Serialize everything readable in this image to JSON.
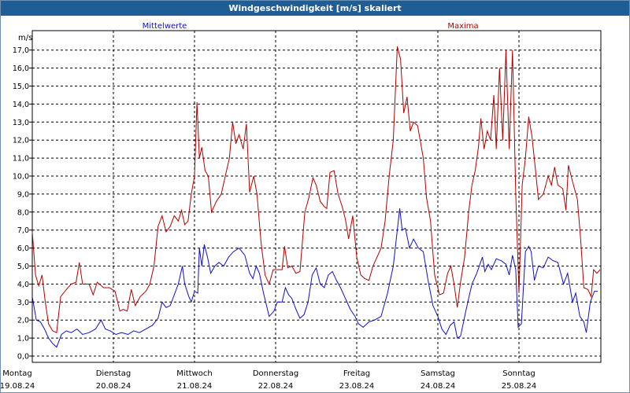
{
  "window": {
    "title": "Windgeschwindigkeit [m/s] skaliert"
  },
  "colors": {
    "mean": "#1010c8",
    "max": "#b40000",
    "titlebar": "#1f5d96"
  },
  "chart_data": {
    "type": "line",
    "title": "Windgeschwindigkeit [m/s] skaliert",
    "ylabel": "m/s",
    "ylim": [
      0,
      18
    ],
    "yticks": [
      "0,0",
      "1,0",
      "2,0",
      "3,0",
      "4,0",
      "5,0",
      "6,0",
      "7,0",
      "8,0",
      "9,0",
      "10,0",
      "11,0",
      "12,0",
      "13,0",
      "14,0",
      "15,0",
      "16,0",
      "17,0"
    ],
    "x_range_days": [
      0,
      7
    ],
    "days": [
      {
        "name": "Montag",
        "date": "19.08.24"
      },
      {
        "name": "Dienstag",
        "date": "20.08.24"
      },
      {
        "name": "Mittwoch",
        "date": "21.08.24"
      },
      {
        "name": "Donnerstag",
        "date": "22.08.24"
      },
      {
        "name": "Freitag",
        "date": "23.08.24"
      },
      {
        "name": "Samstag",
        "date": "24.08.24"
      },
      {
        "name": "Sonntag",
        "date": "25.08.24"
      }
    ],
    "grid": true,
    "series": [
      {
        "name": "Mittelwerte",
        "color": "#1010c8",
        "points": [
          [
            0.0,
            3.3
          ],
          [
            0.05,
            2.0
          ],
          [
            0.1,
            1.9
          ],
          [
            0.15,
            1.5
          ],
          [
            0.2,
            1.0
          ],
          [
            0.25,
            0.7
          ],
          [
            0.3,
            0.5
          ],
          [
            0.36,
            1.2
          ],
          [
            0.42,
            1.4
          ],
          [
            0.48,
            1.3
          ],
          [
            0.55,
            1.5
          ],
          [
            0.62,
            1.2
          ],
          [
            0.7,
            1.3
          ],
          [
            0.78,
            1.5
          ],
          [
            0.85,
            2.0
          ],
          [
            0.9,
            1.5
          ],
          [
            0.96,
            1.4
          ],
          [
            1.03,
            1.2
          ],
          [
            1.1,
            1.3
          ],
          [
            1.18,
            1.2
          ],
          [
            1.25,
            1.4
          ],
          [
            1.32,
            1.3
          ],
          [
            1.4,
            1.5
          ],
          [
            1.48,
            1.7
          ],
          [
            1.55,
            2.1
          ],
          [
            1.6,
            3.0
          ],
          [
            1.65,
            2.7
          ],
          [
            1.7,
            2.8
          ],
          [
            1.75,
            3.4
          ],
          [
            1.8,
            4.0
          ],
          [
            1.85,
            5.0
          ],
          [
            1.88,
            4.0
          ],
          [
            1.93,
            3.3
          ],
          [
            1.96,
            3.0
          ],
          [
            2.0,
            3.6
          ],
          [
            2.04,
            3.5
          ],
          [
            2.06,
            6.0
          ],
          [
            2.09,
            5.0
          ],
          [
            2.12,
            6.2
          ],
          [
            2.16,
            5.5
          ],
          [
            2.2,
            4.6
          ],
          [
            2.25,
            5.0
          ],
          [
            2.3,
            5.2
          ],
          [
            2.36,
            5.0
          ],
          [
            2.42,
            5.5
          ],
          [
            2.48,
            5.8
          ],
          [
            2.55,
            6.0
          ],
          [
            2.62,
            5.6
          ],
          [
            2.68,
            4.6
          ],
          [
            2.72,
            4.3
          ],
          [
            2.76,
            5.0
          ],
          [
            2.8,
            4.6
          ],
          [
            2.85,
            3.5
          ],
          [
            2.92,
            2.2
          ],
          [
            2.98,
            2.5
          ],
          [
            3.02,
            3.0
          ],
          [
            3.08,
            3.0
          ],
          [
            3.12,
            3.8
          ],
          [
            3.16,
            3.4
          ],
          [
            3.2,
            3.2
          ],
          [
            3.25,
            2.6
          ],
          [
            3.3,
            2.1
          ],
          [
            3.35,
            2.3
          ],
          [
            3.4,
            3.0
          ],
          [
            3.45,
            4.5
          ],
          [
            3.5,
            4.9
          ],
          [
            3.55,
            4.0
          ],
          [
            3.6,
            3.8
          ],
          [
            3.65,
            4.5
          ],
          [
            3.7,
            4.7
          ],
          [
            3.75,
            4.2
          ],
          [
            3.8,
            3.8
          ],
          [
            3.85,
            3.3
          ],
          [
            3.92,
            2.6
          ],
          [
            3.98,
            2.2
          ],
          [
            4.02,
            1.8
          ],
          [
            4.08,
            1.6
          ],
          [
            4.15,
            1.9
          ],
          [
            4.22,
            2.0
          ],
          [
            4.3,
            2.2
          ],
          [
            4.38,
            3.5
          ],
          [
            4.45,
            5.0
          ],
          [
            4.5,
            7.0
          ],
          [
            4.53,
            8.2
          ],
          [
            4.56,
            7.0
          ],
          [
            4.6,
            7.1
          ],
          [
            4.65,
            6.0
          ],
          [
            4.7,
            6.5
          ],
          [
            4.76,
            6.0
          ],
          [
            4.82,
            5.8
          ],
          [
            4.88,
            4.2
          ],
          [
            4.94,
            2.8
          ],
          [
            5.0,
            2.2
          ],
          [
            5.05,
            1.5
          ],
          [
            5.1,
            1.2
          ],
          [
            5.15,
            1.7
          ],
          [
            5.2,
            1.9
          ],
          [
            5.24,
            1.0
          ],
          [
            5.28,
            1.1
          ],
          [
            5.35,
            2.6
          ],
          [
            5.42,
            4.0
          ],
          [
            5.48,
            4.6
          ],
          [
            5.55,
            5.5
          ],
          [
            5.58,
            4.7
          ],
          [
            5.62,
            5.1
          ],
          [
            5.66,
            4.8
          ],
          [
            5.72,
            5.4
          ],
          [
            5.78,
            5.3
          ],
          [
            5.84,
            5.1
          ],
          [
            5.88,
            4.5
          ],
          [
            5.92,
            5.6
          ],
          [
            5.96,
            4.8
          ],
          [
            5.99,
            1.6
          ],
          [
            6.03,
            1.8
          ],
          [
            6.08,
            5.8
          ],
          [
            6.12,
            6.1
          ],
          [
            6.15,
            5.8
          ],
          [
            6.19,
            4.2
          ],
          [
            6.24,
            5.0
          ],
          [
            6.3,
            4.9
          ],
          [
            6.36,
            5.5
          ],
          [
            6.42,
            5.3
          ],
          [
            6.48,
            5.2
          ],
          [
            6.55,
            4.0
          ],
          [
            6.6,
            4.6
          ],
          [
            6.66,
            3.0
          ],
          [
            6.7,
            3.5
          ],
          [
            6.75,
            2.2
          ],
          [
            6.8,
            1.9
          ],
          [
            6.83,
            1.3
          ],
          [
            6.88,
            3.0
          ],
          [
            6.93,
            3.6
          ],
          [
            6.97,
            3.6
          ]
        ]
      },
      {
        "name": "Maxima",
        "color": "#b40000",
        "points": [
          [
            0.0,
            6.9
          ],
          [
            0.04,
            4.5
          ],
          [
            0.08,
            3.9
          ],
          [
            0.12,
            4.5
          ],
          [
            0.16,
            3.0
          ],
          [
            0.2,
            1.8
          ],
          [
            0.25,
            1.4
          ],
          [
            0.3,
            1.3
          ],
          [
            0.35,
            3.3
          ],
          [
            0.42,
            3.7
          ],
          [
            0.48,
            4.0
          ],
          [
            0.54,
            4.1
          ],
          [
            0.58,
            5.2
          ],
          [
            0.62,
            4.0
          ],
          [
            0.7,
            4.0
          ],
          [
            0.75,
            3.4
          ],
          [
            0.8,
            4.1
          ],
          [
            0.88,
            3.8
          ],
          [
            0.95,
            3.8
          ],
          [
            1.02,
            3.6
          ],
          [
            1.08,
            2.5
          ],
          [
            1.12,
            2.6
          ],
          [
            1.17,
            2.5
          ],
          [
            1.22,
            3.7
          ],
          [
            1.27,
            2.8
          ],
          [
            1.33,
            3.3
          ],
          [
            1.4,
            3.6
          ],
          [
            1.45,
            4.0
          ],
          [
            1.5,
            5.0
          ],
          [
            1.55,
            7.2
          ],
          [
            1.6,
            7.8
          ],
          [
            1.65,
            6.9
          ],
          [
            1.7,
            7.2
          ],
          [
            1.75,
            7.8
          ],
          [
            1.8,
            7.5
          ],
          [
            1.84,
            8.1
          ],
          [
            1.88,
            7.3
          ],
          [
            1.92,
            7.5
          ],
          [
            1.96,
            9.0
          ],
          [
            2.0,
            10.0
          ],
          [
            2.03,
            14.1
          ],
          [
            2.06,
            11.0
          ],
          [
            2.09,
            11.6
          ],
          [
            2.13,
            10.3
          ],
          [
            2.17,
            10.0
          ],
          [
            2.21,
            8.0
          ],
          [
            2.27,
            8.6
          ],
          [
            2.33,
            9.0
          ],
          [
            2.38,
            10.0
          ],
          [
            2.43,
            11.0
          ],
          [
            2.47,
            13.0
          ],
          [
            2.51,
            11.8
          ],
          [
            2.55,
            12.3
          ],
          [
            2.6,
            11.5
          ],
          [
            2.64,
            12.9
          ],
          [
            2.68,
            9.1
          ],
          [
            2.73,
            10.0
          ],
          [
            2.77,
            9.0
          ],
          [
            2.82,
            6.3
          ],
          [
            2.87,
            4.5
          ],
          [
            2.92,
            4.0
          ],
          [
            2.97,
            4.8
          ],
          [
            3.03,
            4.8
          ],
          [
            3.08,
            4.8
          ],
          [
            3.11,
            6.1
          ],
          [
            3.15,
            4.9
          ],
          [
            3.2,
            5.0
          ],
          [
            3.25,
            4.6
          ],
          [
            3.3,
            4.7
          ],
          [
            3.36,
            8.0
          ],
          [
            3.41,
            8.8
          ],
          [
            3.46,
            9.9
          ],
          [
            3.5,
            9.5
          ],
          [
            3.55,
            8.6
          ],
          [
            3.6,
            8.3
          ],
          [
            3.63,
            8.2
          ],
          [
            3.67,
            10.2
          ],
          [
            3.72,
            10.3
          ],
          [
            3.77,
            9.0
          ],
          [
            3.82,
            8.3
          ],
          [
            3.86,
            7.6
          ],
          [
            3.9,
            6.5
          ],
          [
            3.95,
            7.8
          ],
          [
            4.0,
            5.5
          ],
          [
            4.05,
            4.5
          ],
          [
            4.1,
            4.3
          ],
          [
            4.15,
            4.2
          ],
          [
            4.2,
            5.0
          ],
          [
            4.25,
            5.5
          ],
          [
            4.3,
            6.0
          ],
          [
            4.35,
            7.5
          ],
          [
            4.4,
            10.0
          ],
          [
            4.45,
            12.0
          ],
          [
            4.5,
            17.2
          ],
          [
            4.54,
            16.5
          ],
          [
            4.58,
            13.5
          ],
          [
            4.62,
            14.4
          ],
          [
            4.66,
            12.5
          ],
          [
            4.7,
            13.0
          ],
          [
            4.75,
            12.8
          ],
          [
            4.82,
            11.0
          ],
          [
            4.86,
            8.8
          ],
          [
            4.91,
            7.5
          ],
          [
            4.96,
            4.5
          ],
          [
            5.02,
            3.4
          ],
          [
            5.07,
            3.5
          ],
          [
            5.12,
            4.6
          ],
          [
            5.16,
            5.0
          ],
          [
            5.2,
            4.0
          ],
          [
            5.24,
            2.7
          ],
          [
            5.28,
            4.1
          ],
          [
            5.33,
            5.5
          ],
          [
            5.38,
            8.0
          ],
          [
            5.42,
            9.5
          ],
          [
            5.46,
            10.3
          ],
          [
            5.5,
            11.6
          ],
          [
            5.53,
            13.2
          ],
          [
            5.57,
            11.5
          ],
          [
            5.61,
            12.5
          ],
          [
            5.65,
            12.0
          ],
          [
            5.69,
            14.5
          ],
          [
            5.72,
            11.5
          ],
          [
            5.76,
            16.0
          ],
          [
            5.8,
            12.0
          ],
          [
            5.84,
            17.0
          ],
          [
            5.88,
            11.5
          ],
          [
            5.92,
            17.0
          ],
          [
            5.96,
            9.0
          ],
          [
            6.0,
            3.5
          ],
          [
            6.04,
            9.5
          ],
          [
            6.08,
            11.0
          ],
          [
            6.12,
            13.3
          ],
          [
            6.16,
            12.2
          ],
          [
            6.2,
            10.5
          ],
          [
            6.24,
            8.7
          ],
          [
            6.3,
            9.0
          ],
          [
            6.36,
            10.0
          ],
          [
            6.4,
            9.5
          ],
          [
            6.44,
            10.5
          ],
          [
            6.48,
            9.5
          ],
          [
            6.54,
            9.3
          ],
          [
            6.58,
            8.1
          ],
          [
            6.61,
            10.6
          ],
          [
            6.66,
            9.7
          ],
          [
            6.72,
            8.7
          ],
          [
            6.76,
            6.5
          ],
          [
            6.8,
            3.8
          ],
          [
            6.85,
            3.7
          ],
          [
            6.89,
            3.3
          ],
          [
            6.92,
            4.8
          ],
          [
            6.96,
            4.6
          ],
          [
            7.0,
            4.8
          ]
        ]
      }
    ]
  }
}
